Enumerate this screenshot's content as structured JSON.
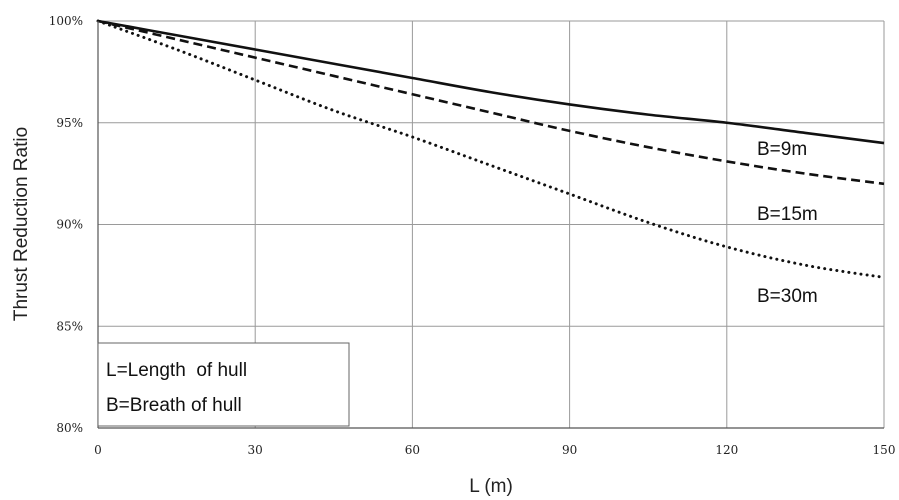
{
  "chart_data": {
    "type": "line",
    "title": "",
    "xlabel": "L (m)",
    "ylabel": "Thrust Reduction Ratio",
    "xlim": [
      0,
      150
    ],
    "ylim": [
      80,
      100
    ],
    "x_ticks": [
      0,
      30,
      60,
      90,
      120,
      150
    ],
    "x_tick_labels": [
      "0",
      "30",
      "60",
      "90",
      "120",
      "150"
    ],
    "y_ticks": [
      80,
      85,
      90,
      95,
      100
    ],
    "y_tick_labels": [
      "80%",
      "85%",
      "90%",
      "95%",
      "100%"
    ],
    "grid": true,
    "x": [
      0,
      15,
      30,
      45,
      60,
      75,
      90,
      105,
      120,
      135,
      150
    ],
    "series": [
      {
        "name": "B=9m",
        "line_style": "solid",
        "values": [
          100,
          99.3,
          98.6,
          97.9,
          97.2,
          96.5,
          95.9,
          95.4,
          95.0,
          94.5,
          94.0
        ]
      },
      {
        "name": "B=15m",
        "line_style": "dashed",
        "values": [
          100,
          99.1,
          98.2,
          97.3,
          96.4,
          95.5,
          94.6,
          93.8,
          93.1,
          92.5,
          92.0
        ]
      },
      {
        "name": "B=30m",
        "line_style": "dotted",
        "values": [
          100,
          98.6,
          97.1,
          95.6,
          94.3,
          92.9,
          91.5,
          90.1,
          88.9,
          88.0,
          87.4
        ]
      }
    ],
    "legend": "on-plot labels near right end of each line",
    "annotation_box": [
      "L=Length  of hull",
      "B=Breath of hull"
    ],
    "annotation_box_position": "bottom-left"
  }
}
